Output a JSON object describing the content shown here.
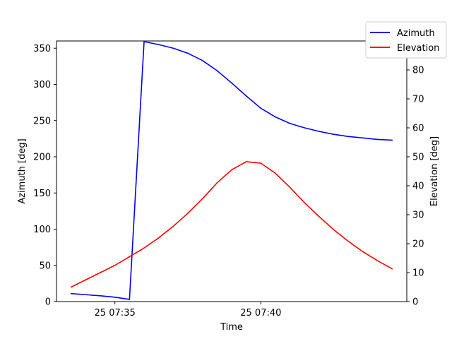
{
  "chart_data": {
    "type": "line",
    "xlabel": "Time",
    "ylabel_left": "Azimuth [deg]",
    "ylabel_right": "Elevation [deg]",
    "x_start": "25 07:33",
    "x_step_minutes": 0.5,
    "x_ticks": [
      {
        "minute": 2.0,
        "label": "25 07:35"
      },
      {
        "minute": 7.0,
        "label": "25 07:40"
      }
    ],
    "ylim_left": [
      0,
      360
    ],
    "yticks_left": [
      0,
      50,
      100,
      150,
      200,
      250,
      300,
      350
    ],
    "ylim_right": [
      0,
      90
    ],
    "yticks_right": [
      0,
      10,
      20,
      30,
      40,
      50,
      60,
      70,
      80,
      90
    ],
    "grid": false,
    "legend": "top-right",
    "series": [
      {
        "name": "Azimuth",
        "color": "#0000ff",
        "axis": "left",
        "minutes": [
          0.5,
          1.0,
          1.5,
          2.0,
          2.5,
          3.0,
          3.5,
          4.0,
          4.5,
          5.0,
          5.5,
          6.0,
          6.5,
          7.0,
          7.5,
          8.0,
          8.5,
          9.0,
          9.5,
          10.0,
          10.5,
          11.0,
          11.5
        ],
        "values": [
          11,
          9.5,
          8,
          6,
          3,
          359,
          355,
          350,
          343,
          333,
          319,
          302,
          284,
          267,
          255,
          246,
          240,
          235,
          231,
          228,
          226,
          224,
          223
        ]
      },
      {
        "name": "Elevation",
        "color": "#ff0000",
        "axis": "right",
        "minutes": [
          0.5,
          1.0,
          1.5,
          2.0,
          2.5,
          3.0,
          3.5,
          4.0,
          4.5,
          5.0,
          5.5,
          6.0,
          6.5,
          7.0,
          7.5,
          8.0,
          8.5,
          9.0,
          9.5,
          10.0,
          10.5,
          11.0,
          11.5
        ],
        "values": [
          5,
          7.5,
          10,
          12.5,
          15.5,
          18.5,
          22,
          26,
          30.5,
          35.5,
          41,
          45.5,
          48.3,
          47.8,
          44.3,
          39.4,
          34.1,
          29.3,
          24.8,
          20.8,
          17.2,
          14.1,
          11.3
        ]
      }
    ]
  }
}
